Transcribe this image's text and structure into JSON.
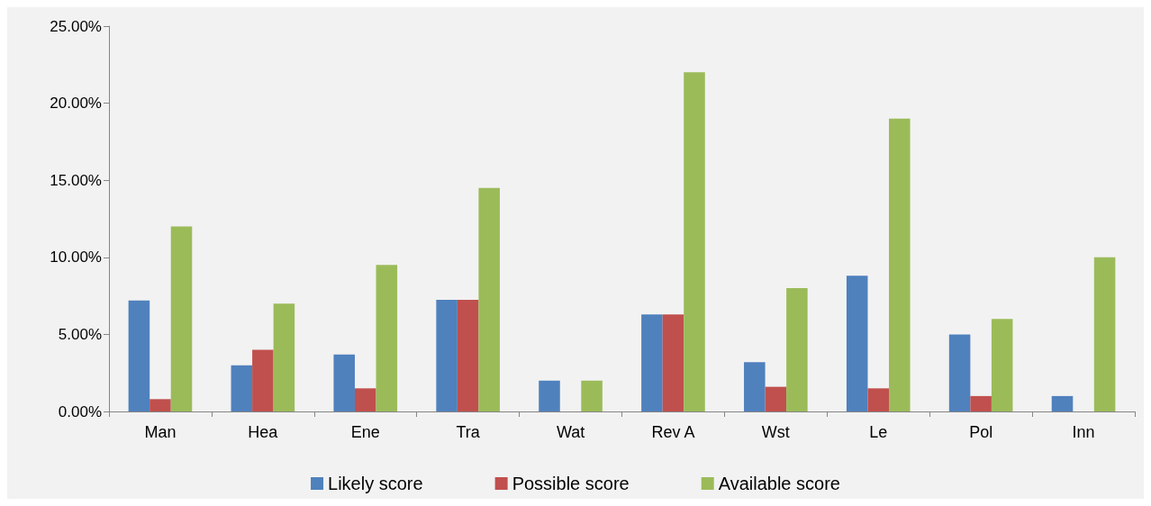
{
  "chart_data": {
    "type": "bar",
    "categories": [
      "Man",
      "Hea",
      "Ene",
      "Tra",
      "Wat",
      "Rev A",
      "Wst",
      "Le",
      "Pol",
      "Inn"
    ],
    "series": [
      {
        "name": "Likely score",
        "color": "#4f81bd",
        "values": [
          7.2,
          3.0,
          3.7,
          7.25,
          2.0,
          6.3,
          3.2,
          8.8,
          5.0,
          1.0
        ]
      },
      {
        "name": "Possible score",
        "color": "#c0504d",
        "values": [
          0.8,
          4.0,
          1.5,
          7.25,
          0,
          6.3,
          1.6,
          1.5,
          1.0,
          0
        ]
      },
      {
        "name": "Available score",
        "color": "#9bbb59",
        "values": [
          12.0,
          7.0,
          9.5,
          14.5,
          2.0,
          22.0,
          8.0,
          19.0,
          6.0,
          10.0
        ]
      }
    ],
    "ylim": [
      0,
      25
    ],
    "yticks": [
      {
        "value": 0,
        "label": "0.00%"
      },
      {
        "value": 5,
        "label": "5.00%"
      },
      {
        "value": 10,
        "label": "10.00%"
      },
      {
        "value": 15,
        "label": "15.00%"
      },
      {
        "value": 20,
        "label": "20.00%"
      },
      {
        "value": 25,
        "label": "25.00%"
      }
    ],
    "grid": false,
    "legend": "bottom"
  }
}
